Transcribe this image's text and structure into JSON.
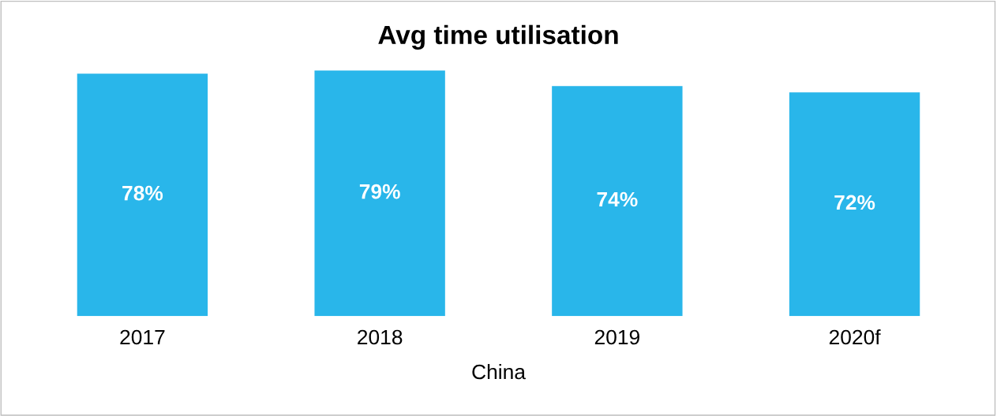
{
  "chart_data": {
    "type": "bar",
    "title": "Avg time utilisation",
    "xlabel": "China",
    "categories": [
      "2017",
      "2018",
      "2019",
      "2020f"
    ],
    "values": [
      78,
      79,
      74,
      72
    ],
    "value_labels": [
      "78%",
      "79%",
      "74%",
      "72%"
    ],
    "color": "#29b6ea",
    "grid": false,
    "legend": false
  }
}
